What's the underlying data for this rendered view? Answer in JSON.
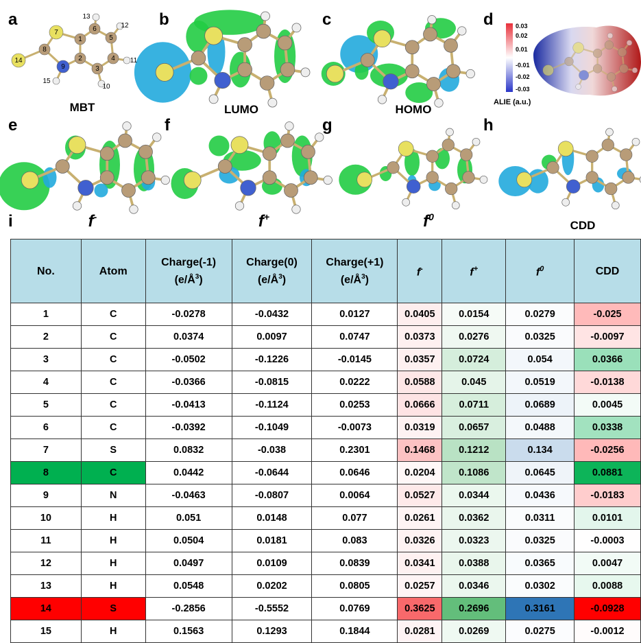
{
  "panels": {
    "labels": [
      "a",
      "b",
      "c",
      "d",
      "e",
      "f",
      "g",
      "h",
      "i"
    ],
    "captions": [
      {
        "text": "MBT"
      },
      {
        "text": "LUMO"
      },
      {
        "text": "HOMO"
      },
      {
        "text": "f",
        "sup": "-"
      },
      {
        "text": "f",
        "sup": "+"
      },
      {
        "text": "f",
        "sup": "0"
      },
      {
        "text": "CDD"
      }
    ],
    "mbt_atom_labels": [
      "1",
      "2",
      "3",
      "4",
      "5",
      "6",
      "7",
      "8",
      "9",
      "10",
      "11",
      "12",
      "13",
      "14",
      "15"
    ],
    "alie": {
      "ticks": [
        "0.03",
        "0.02",
        "0.01",
        "-0.01",
        "-0.02",
        "-0.03"
      ],
      "label": "ALIE (a.u.)"
    }
  },
  "table": {
    "header": [
      {
        "text": "No."
      },
      {
        "text": "Atom"
      },
      {
        "lines": [
          "Charge(-1)",
          "(e/Å"
        ],
        "sup": "3",
        "tail": ")"
      },
      {
        "lines": [
          "Charge(0)",
          "(e/Å"
        ],
        "sup": "3",
        "tail": ")"
      },
      {
        "lines": [
          "Charge(+1)",
          "(e/Å"
        ],
        "sup": "3",
        "tail": ")"
      },
      {
        "text": "f",
        "sup": "-"
      },
      {
        "text": "f",
        "sup": "+"
      },
      {
        "text": "f",
        "sup": "0"
      },
      {
        "text": "CDD"
      }
    ],
    "rows": [
      [
        1,
        "C",
        -0.0278,
        -0.0432,
        0.0127,
        0.0405,
        0.0154,
        0.0279,
        -0.025
      ],
      [
        2,
        "C",
        0.0374,
        0.0097,
        0.0747,
        0.0373,
        0.0276,
        0.0325,
        -0.0097
      ],
      [
        3,
        "C",
        -0.0502,
        -0.1226,
        -0.0145,
        0.0357,
        0.0724,
        0.054,
        0.0366
      ],
      [
        4,
        "C",
        -0.0366,
        -0.0815,
        0.0222,
        0.0588,
        0.045,
        0.0519,
        -0.0138
      ],
      [
        5,
        "C",
        -0.0413,
        -0.1124,
        0.0253,
        0.0666,
        0.0711,
        0.0689,
        0.0045
      ],
      [
        6,
        "C",
        -0.0392,
        -0.1049,
        -0.0073,
        0.0319,
        0.0657,
        0.0488,
        0.0338
      ],
      [
        7,
        "S",
        0.0832,
        -0.038,
        0.2301,
        0.1468,
        0.1212,
        0.134,
        -0.0256
      ],
      [
        8,
        "C",
        0.0442,
        -0.0644,
        0.0646,
        0.0204,
        0.1086,
        0.0645,
        0.0881
      ],
      [
        9,
        "N",
        -0.0463,
        -0.0807,
        0.0064,
        0.0527,
        0.0344,
        0.0436,
        -0.0183
      ],
      [
        10,
        "H",
        0.051,
        0.0148,
        0.077,
        0.0261,
        0.0362,
        0.0311,
        0.0101
      ],
      [
        11,
        "H",
        0.0504,
        0.0181,
        0.083,
        0.0326,
        0.0323,
        0.0325,
        -0.0003
      ],
      [
        12,
        "H",
        0.0497,
        0.0109,
        0.0839,
        0.0341,
        0.0388,
        0.0365,
        0.0047
      ],
      [
        13,
        "H",
        0.0548,
        0.0202,
        0.0805,
        0.0257,
        0.0346,
        0.0302,
        0.0088
      ],
      [
        14,
        "S",
        -0.2856,
        -0.5552,
        0.0769,
        0.3625,
        0.2696,
        0.3161,
        -0.0928
      ],
      [
        15,
        "H",
        0.1563,
        0.1293,
        0.1844,
        0.0281,
        0.0269,
        0.0275,
        -0.0012
      ]
    ]
  }
}
